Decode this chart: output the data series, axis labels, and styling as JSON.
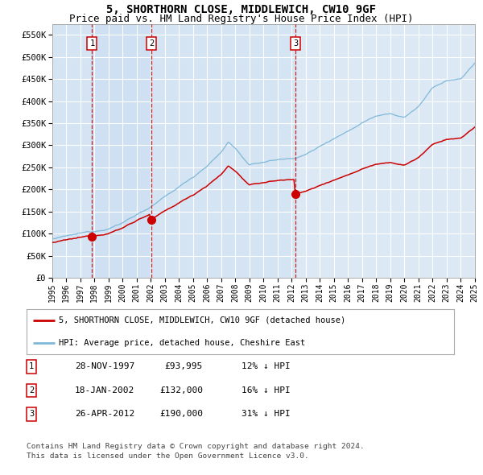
{
  "title": "5, SHORTHORN CLOSE, MIDDLEWICH, CW10 9GF",
  "subtitle": "Price paid vs. HM Land Registry's House Price Index (HPI)",
  "title_fontsize": 10,
  "subtitle_fontsize": 9,
  "hpi_color": "#7fb8d8",
  "price_color": "#cc0000",
  "dashed_color": "#cc0000",
  "plot_bg": "#dce9f5",
  "grid_color": "#ffffff",
  "ylim": [
    0,
    575000
  ],
  "yticks": [
    0,
    50000,
    100000,
    150000,
    200000,
    250000,
    300000,
    350000,
    400000,
    450000,
    500000,
    550000
  ],
  "ytick_labels": [
    "£0",
    "£50K",
    "£100K",
    "£150K",
    "£200K",
    "£250K",
    "£300K",
    "£350K",
    "£400K",
    "£450K",
    "£500K",
    "£550K"
  ],
  "xmin_year": 1995,
  "xmax_year": 2025,
  "sale_date_nums": [
    1997.833,
    2002.042,
    2012.292
  ],
  "sale_prices": [
    93995,
    132000,
    190000
  ],
  "sale_labels": [
    "1",
    "2",
    "3"
  ],
  "legend_entries": [
    "5, SHORTHORN CLOSE, MIDDLEWICH, CW10 9GF (detached house)",
    "HPI: Average price, detached house, Cheshire East"
  ],
  "table_rows": [
    [
      "1",
      "28-NOV-1997",
      "£93,995",
      "12% ↓ HPI"
    ],
    [
      "2",
      "18-JAN-2002",
      "£132,000",
      "16% ↓ HPI"
    ],
    [
      "3",
      "26-APR-2012",
      "£190,000",
      "31% ↓ HPI"
    ]
  ],
  "footnote1": "Contains HM Land Registry data © Crown copyright and database right 2024.",
  "footnote2": "This data is licensed under the Open Government Licence v3.0.",
  "xtick_years": [
    1995,
    1996,
    1997,
    1998,
    1999,
    2000,
    2001,
    2002,
    2003,
    2004,
    2005,
    2006,
    2007,
    2008,
    2009,
    2010,
    2011,
    2012,
    2013,
    2014,
    2015,
    2016,
    2017,
    2018,
    2019,
    2020,
    2021,
    2022,
    2023,
    2024,
    2025
  ]
}
